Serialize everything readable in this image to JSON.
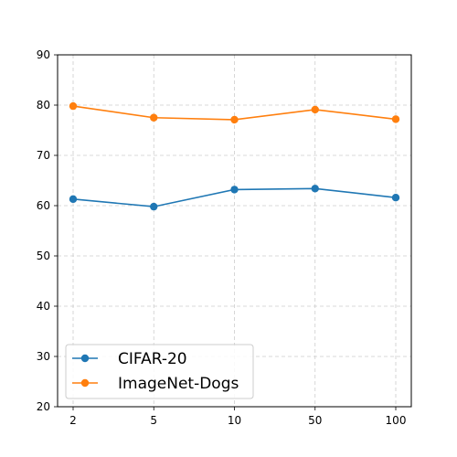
{
  "chart_data": {
    "type": "line",
    "title": "",
    "xlabel": "",
    "ylabel": "",
    "categories": [
      "2",
      "5",
      "10",
      "50",
      "100"
    ],
    "ylim": [
      20,
      90
    ],
    "yticks": [
      20,
      30,
      40,
      50,
      60,
      70,
      80,
      90
    ],
    "grid": true,
    "legend_position": "lower-left",
    "series": [
      {
        "name": "CIFAR-20",
        "color": "#1f77b4",
        "values": [
          61.3,
          59.8,
          63.2,
          63.4,
          61.6
        ]
      },
      {
        "name": "ImageNet-Dogs",
        "color": "#ff7f0e",
        "values": [
          79.8,
          77.5,
          77.1,
          79.1,
          77.2
        ]
      }
    ]
  }
}
